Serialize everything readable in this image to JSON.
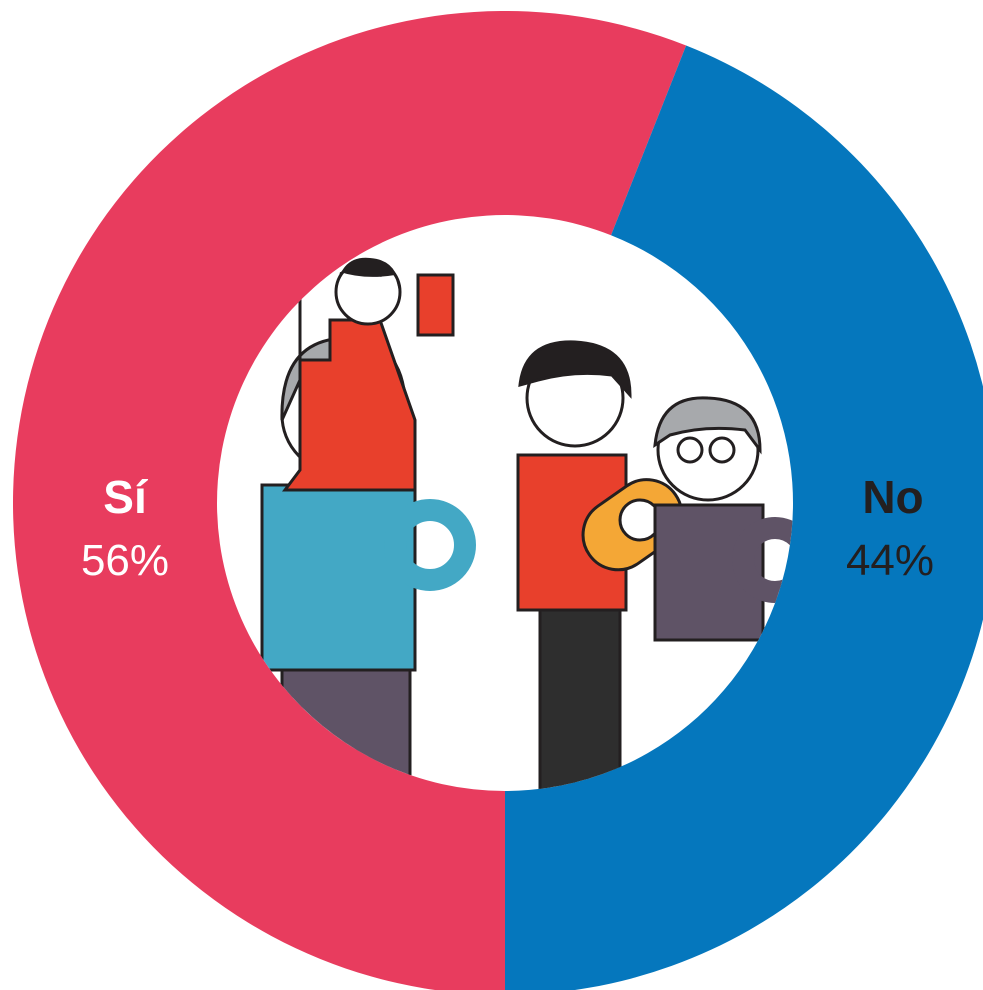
{
  "chart_data": {
    "type": "donut",
    "categories": [
      "Sí",
      "No"
    ],
    "values": [
      56,
      44
    ],
    "value_labels": [
      "56%",
      "44%"
    ],
    "colors": [
      "#e83c5e",
      "#0577bd"
    ],
    "label_colors": [
      "#ffffff",
      "#231f20"
    ]
  }
}
